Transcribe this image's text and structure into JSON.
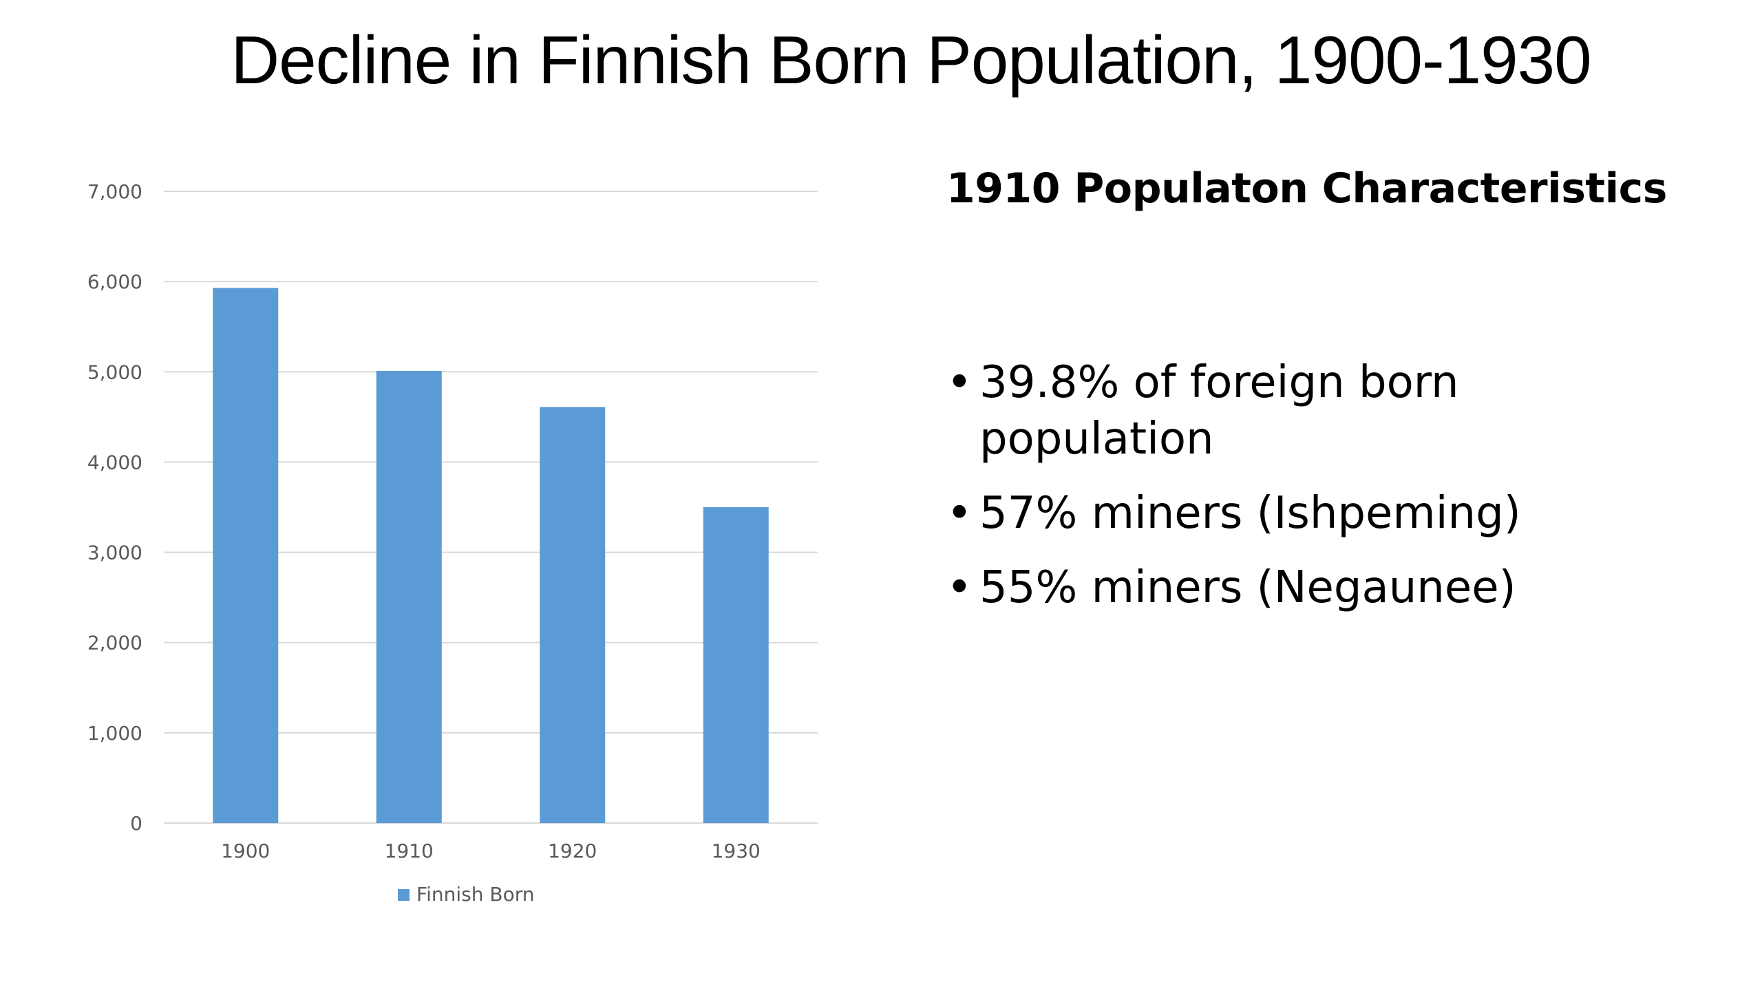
{
  "slide": {
    "title": "Decline in Finnish Born Population, 1900-1930"
  },
  "chart_data": {
    "type": "bar",
    "categories": [
      "1900",
      "1910",
      "1920",
      "1930"
    ],
    "series": [
      {
        "name": "Finnish Born",
        "values": [
          5930,
          5010,
          4610,
          3500
        ]
      }
    ],
    "y_ticks": [
      "0",
      "1,000",
      "2,000",
      "3,000",
      "4,000",
      "5,000",
      "6,000",
      "7,000"
    ],
    "ylim": [
      0,
      7000
    ],
    "grid": true,
    "legend_position": "bottom",
    "bar_color": "#5B9BD5",
    "grid_color": "#D9D9D9"
  },
  "panel": {
    "heading": "1910 Populaton Characteristics",
    "bullets": [
      " 39.8% of foreign born population",
      "57% miners (Ishpeming)",
      "55% miners (Negaunee)"
    ],
    "bullet_glyph": "•"
  }
}
